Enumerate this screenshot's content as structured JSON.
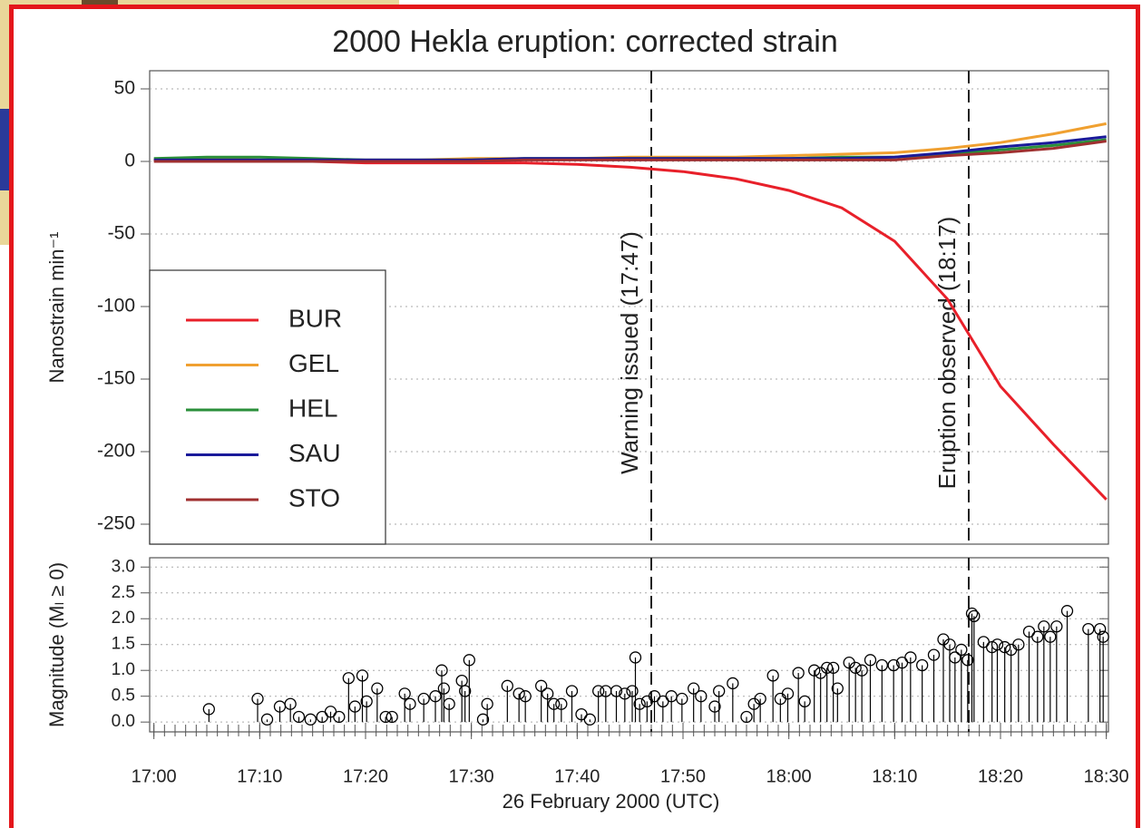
{
  "chart_data": [
    {
      "type": "line",
      "title": "2000 Hekla eruption: corrected strain",
      "ylabel": "Nanostrain min⁻¹",
      "xlim": [
        -0.4,
        90.2
      ],
      "ylim": [
        -263.75,
        62.5
      ],
      "yticks": [
        -250,
        -200,
        -150,
        -100,
        -50,
        0,
        50
      ],
      "grid": true,
      "legend": "lower left",
      "x": [
        0,
        5,
        10,
        15,
        20,
        25,
        30,
        35,
        40,
        45,
        50,
        55,
        60,
        65,
        70,
        75,
        80,
        85,
        90
      ],
      "series": [
        {
          "name": "BUR",
          "color": "#e8202a",
          "values": [
            1,
            0,
            0,
            0,
            -1,
            -1,
            -1,
            -1,
            -2,
            -4,
            -7,
            -12,
            -20,
            -32,
            -55,
            -95,
            -155,
            -195,
            -233
          ]
        },
        {
          "name": "GEL",
          "color": "#f0a030",
          "values": [
            1,
            2,
            1,
            1,
            1,
            1,
            2,
            2,
            2,
            3,
            3,
            3,
            4,
            5,
            6,
            9,
            13,
            19,
            26
          ]
        },
        {
          "name": "HEL",
          "color": "#2a8f3a",
          "values": [
            2,
            3,
            3,
            2,
            1,
            1,
            1,
            2,
            2,
            2,
            2,
            2,
            2,
            3,
            3,
            5,
            8,
            11,
            15
          ]
        },
        {
          "name": "SAU",
          "color": "#1a1a9a",
          "values": [
            1,
            1,
            1,
            1,
            1,
            1,
            1,
            2,
            2,
            2,
            2,
            2,
            2,
            2,
            3,
            6,
            10,
            13,
            17
          ]
        },
        {
          "name": "STO",
          "color": "#a03030",
          "values": [
            0,
            0,
            0,
            0,
            0,
            0,
            0,
            1,
            1,
            1,
            1,
            1,
            1,
            1,
            1,
            4,
            6,
            9,
            14
          ]
        }
      ],
      "vlines": [
        {
          "x": 47,
          "label": "Warning issued (17:47)"
        },
        {
          "x": 77,
          "label": "Eruption observed (18:17)"
        }
      ]
    },
    {
      "type": "stem",
      "ylabel": "Magnitude (Mₗ ≥ 0)",
      "xlabel": "26 February 2000 (UTC)",
      "color": "#000000",
      "xlim": [
        -0.4,
        90.2
      ],
      "ylim": [
        -0.19,
        3.18
      ],
      "grid": true,
      "yticks": [
        {
          "value": 0,
          "label": "0.0"
        },
        {
          "value": 0.5,
          "label": "0.5"
        },
        {
          "value": 1,
          "label": "1.0"
        },
        {
          "value": 1.5,
          "label": "1.5"
        },
        {
          "value": 2,
          "label": "2.0"
        },
        {
          "value": 2.5,
          "label": "2.5"
        },
        {
          "value": 3,
          "label": "3.0"
        }
      ],
      "xticks": [
        {
          "value": 0,
          "label": "17:00"
        },
        {
          "value": 10,
          "label": "17:10"
        },
        {
          "value": 20,
          "label": "17:20"
        },
        {
          "value": 30,
          "label": "17:30"
        },
        {
          "value": 40,
          "label": "17:40"
        },
        {
          "value": 50,
          "label": "17:50"
        },
        {
          "value": 60,
          "label": "18:00"
        },
        {
          "value": 70,
          "label": "18:10"
        },
        {
          "value": 80,
          "label": "18:20"
        },
        {
          "value": 90,
          "label": "18:30"
        }
      ],
      "xminorticks": [
        0,
        1,
        2,
        3,
        4,
        5,
        6,
        7,
        8,
        9,
        10,
        11,
        12,
        13,
        14,
        15,
        16,
        17,
        18,
        19,
        20,
        21,
        22,
        23,
        24,
        25,
        26,
        27,
        28,
        29,
        30,
        31,
        32,
        33,
        34,
        35,
        36,
        37,
        38,
        39,
        40,
        41,
        42,
        43,
        44,
        45,
        46,
        47,
        48,
        49,
        50,
        51,
        52,
        53,
        54,
        55,
        56,
        57,
        58,
        59,
        60,
        61,
        62,
        63,
        64,
        65,
        66,
        67,
        68,
        69,
        70,
        71,
        72,
        73,
        74,
        75,
        76,
        77,
        78,
        79,
        80,
        81,
        82,
        83,
        84,
        85,
        86,
        87,
        88,
        89,
        90
      ],
      "x": [
        5.2,
        9.8,
        10.7,
        11.9,
        12.9,
        13.7,
        14.8,
        15.9,
        16.7,
        17.5,
        18.4,
        19.0,
        19.7,
        20.1,
        21.1,
        21.9,
        22.5,
        23.7,
        24.2,
        25.5,
        26.6,
        27.2,
        27.4,
        27.9,
        29.1,
        29.4,
        29.8,
        31.1,
        31.5,
        33.4,
        34.5,
        35.1,
        36.6,
        37.2,
        37.8,
        38.5,
        39.5,
        40.4,
        41.2,
        42.0,
        42.7,
        43.7,
        44.5,
        45.2,
        45.5,
        45.9,
        46.6,
        47.3,
        48.1,
        48.9,
        49.9,
        51.0,
        51.7,
        53.0,
        53.4,
        54.7,
        56.0,
        56.7,
        57.3,
        58.5,
        59.2,
        59.9,
        60.9,
        61.5,
        62.4,
        63.0,
        63.6,
        64.2,
        64.6,
        65.7,
        66.3,
        66.9,
        67.7,
        68.8,
        69.9,
        70.7,
        71.5,
        72.6,
        73.7,
        74.6,
        75.2,
        75.7,
        76.3,
        76.9,
        77.3,
        77.5,
        78.4,
        79.2,
        79.7,
        80.4,
        81.0,
        81.7,
        82.7,
        83.5,
        84.1,
        84.7,
        85.3,
        86.3,
        88.3,
        89.4,
        89.7
      ],
      "values": [
        0.25,
        0.45,
        0.05,
        0.3,
        0.35,
        0.1,
        0.05,
        0.1,
        0.2,
        0.1,
        0.85,
        0.3,
        0.9,
        0.4,
        0.65,
        0.1,
        0.1,
        0.55,
        0.35,
        0.45,
        0.5,
        1.0,
        0.65,
        0.35,
        0.8,
        0.6,
        1.2,
        0.05,
        0.35,
        0.7,
        0.55,
        0.5,
        0.7,
        0.55,
        0.35,
        0.35,
        0.6,
        0.15,
        0.05,
        0.6,
        0.6,
        0.6,
        0.55,
        0.6,
        1.25,
        0.35,
        0.4,
        0.5,
        0.4,
        0.5,
        0.45,
        0.65,
        0.5,
        0.3,
        0.6,
        0.75,
        0.1,
        0.35,
        0.45,
        0.9,
        0.45,
        0.55,
        0.95,
        0.4,
        1.0,
        0.95,
        1.05,
        1.05,
        0.65,
        1.15,
        1.05,
        1.0,
        1.2,
        1.1,
        1.1,
        1.15,
        1.25,
        1.1,
        1.3,
        1.6,
        1.5,
        1.25,
        1.4,
        1.2,
        2.1,
        2.05,
        1.55,
        1.45,
        1.5,
        1.45,
        1.4,
        1.5,
        1.75,
        1.65,
        1.85,
        1.65,
        1.85,
        2.15,
        1.8,
        1.8,
        1.65
      ],
      "vlines": [
        {
          "x": 47
        },
        {
          "x": 77
        }
      ]
    }
  ]
}
